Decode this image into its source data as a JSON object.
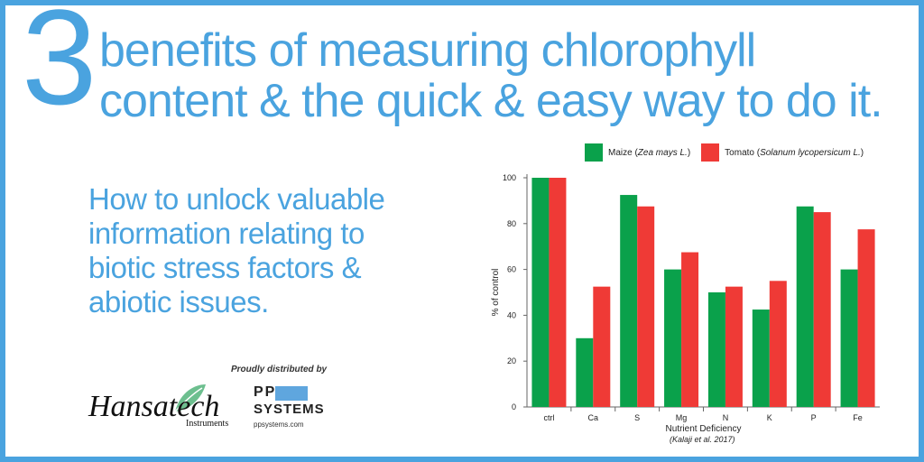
{
  "header": {
    "number": "3",
    "title_line1": "benefits of measuring chlorophyll",
    "title_line2": "content & the quick & easy way to do it."
  },
  "subhead": {
    "line1": "How to unlock valuable",
    "line2": "information relating to",
    "line3": "biotic stress factors &",
    "line4": "abiotic issues."
  },
  "branding": {
    "distributed_by": "Proudly distributed by",
    "hansatech_word": "Hansatech",
    "hansatech_sub": "Instruments",
    "pp_text": "PP",
    "systems_text": "SYSTEMS",
    "pp_url": "ppsystems.com"
  },
  "colors": {
    "accent": "#4aa3df",
    "maize": "#0aa14b",
    "tomato": "#ef3a36"
  },
  "chart_data": {
    "type": "bar",
    "categories": [
      "ctrl",
      "Ca",
      "S",
      "Mg",
      "N",
      "K",
      "P",
      "Fe"
    ],
    "series": [
      {
        "name": "Maize (Zea mays L.)",
        "name_plain": "Maize (",
        "name_italic": "Zea mays L.",
        "name_end": ")",
        "values": [
          100,
          30,
          92.5,
          60,
          50,
          42.5,
          87.5,
          60
        ]
      },
      {
        "name": "Tomato (Solanum lycopersicum L.)",
        "name_plain": "Tomato (",
        "name_italic": "Solanum lycopersicum L.",
        "name_end": ")",
        "values": [
          100,
          52.5,
          87.5,
          67.5,
          52.5,
          55,
          85,
          77.5
        ]
      }
    ],
    "xlabel": "Nutrient Deficiency",
    "ylabel": "% of control",
    "ylim": [
      0,
      100
    ],
    "yticks": [
      0,
      20,
      40,
      60,
      80,
      100
    ],
    "source": "(Kalaji et al. 2017)",
    "legend_position": "top"
  }
}
